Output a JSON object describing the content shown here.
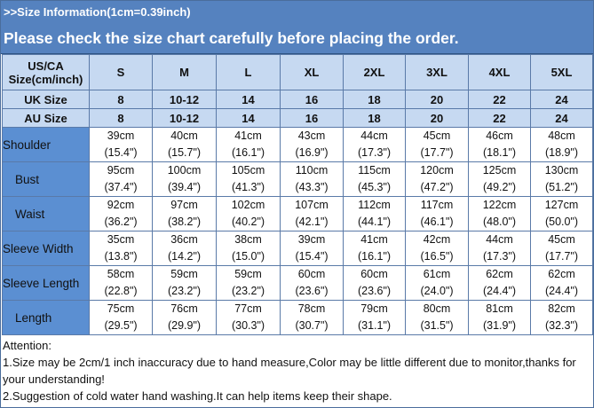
{
  "header": {
    "title": ">>Size Information(1cm=0.39inch)",
    "subtitle": "Please check the size chart carefully before placing the order."
  },
  "colors": {
    "band": "#5582bf",
    "header_rows": "#c6d9f1",
    "label_column": "#5b8fd2"
  },
  "table": {
    "corner_line1": "US/CA",
    "corner_line2": "Size(cm/inch)",
    "sizes": [
      "S",
      "M",
      "L",
      "XL",
      "2XL",
      "3XL",
      "4XL",
      "5XL"
    ],
    "uk": {
      "label": "UK  Size",
      "values": [
        "8",
        "10-12",
        "14",
        "16",
        "18",
        "20",
        "22",
        "24"
      ]
    },
    "au": {
      "label": "AU  Size",
      "values": [
        "8",
        "10-12",
        "14",
        "16",
        "18",
        "20",
        "22",
        "24"
      ]
    },
    "rows": [
      {
        "label": "Shoulder",
        "cm": [
          "39cm",
          "40cm",
          "41cm",
          "43cm",
          "44cm",
          "45cm",
          "46cm",
          "48cm"
        ],
        "inch": [
          "(15.4\")",
          "(15.7\")",
          "(16.1\")",
          "(16.9\")",
          "(17.3\")",
          "(17.7\")",
          "(18.1\")",
          "(18.9\")"
        ]
      },
      {
        "label": "Bust",
        "cm": [
          "95cm",
          "100cm",
          "105cm",
          "110cm",
          "115cm",
          "120cm",
          "125cm",
          "130cm"
        ],
        "inch": [
          "(37.4\")",
          "(39.4\")",
          "(41.3\")",
          "(43.3\")",
          "(45.3\")",
          "(47.2\")",
          "(49.2\")",
          "(51.2\")"
        ]
      },
      {
        "label": "Waist",
        "cm": [
          "92cm",
          "97cm",
          "102cm",
          "107cm",
          "112cm",
          "117cm",
          "122cm",
          "127cm"
        ],
        "inch": [
          "(36.2\")",
          "(38.2\")",
          "(40.2\")",
          "(42.1\")",
          "(44.1\")",
          "(46.1\")",
          "(48.0\")",
          "(50.0\")"
        ]
      },
      {
        "label": "Sleeve Width",
        "cm": [
          "35cm",
          "36cm",
          "38cm",
          "39cm",
          "41cm",
          "42cm",
          "44cm",
          "45cm"
        ],
        "inch": [
          "(13.8\")",
          "(14.2\")",
          "(15.0\")",
          "(15.4\")",
          "(16.1\")",
          "(16.5\")",
          "(17.3\")",
          "(17.7\")"
        ]
      },
      {
        "label": "Sleeve Length",
        "cm": [
          "58cm",
          "59cm",
          "59cm",
          "60cm",
          "60cm",
          "61cm",
          "62cm",
          "62cm"
        ],
        "inch": [
          "(22.8\")",
          "(23.2\")",
          "(23.2\")",
          "(23.6\")",
          "(23.6\")",
          "(24.0\")",
          "(24.4\")",
          "(24.4\")"
        ]
      },
      {
        "label": "Length",
        "cm": [
          "75cm",
          "76cm",
          "77cm",
          "78cm",
          "79cm",
          "80cm",
          "81cm",
          "82cm"
        ],
        "inch": [
          "(29.5\")",
          "(29.9\")",
          "(30.3\")",
          "(30.7\")",
          "(31.1\")",
          "(31.5\")",
          "(31.9\")",
          "(32.3\")"
        ]
      }
    ]
  },
  "attention": {
    "heading": "Attention:",
    "notes": [
      "1.Size may be 2cm/1 inch inaccuracy due to hand measure,Color may be little different due to monitor,thanks for your understanding!",
      "2.Suggestion of cold water hand washing.It can help items keep their shape."
    ]
  }
}
